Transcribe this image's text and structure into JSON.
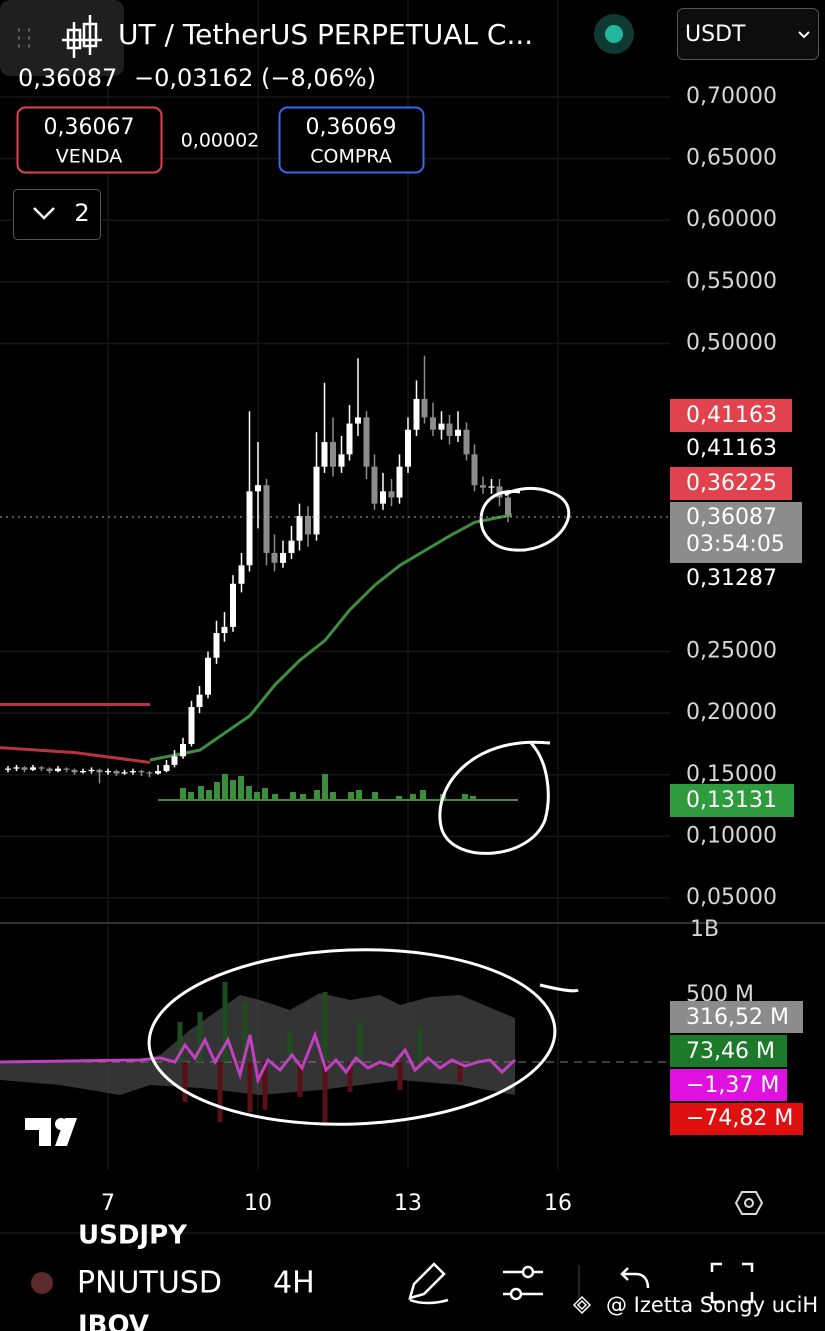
{
  "header": {
    "title": "UT / TetherUS PERPETUAL C...",
    "last_price": "0,36087",
    "change": "−0,03162 (−8,06%)",
    "sell": {
      "price": "0,36067",
      "label": "VENDA"
    },
    "spread": "0,00002",
    "buy": {
      "price": "0,36069",
      "label": "COMPRA"
    },
    "collapse_count": "2",
    "currency": "USDT"
  },
  "chart_data": {
    "type": "candlestick",
    "up_color": "#ffffff",
    "down_color": "#8c8c8c",
    "x": [
      5.0,
      5.17,
      5.33,
      5.5,
      5.67,
      5.83,
      6.0,
      6.17,
      6.33,
      6.5,
      6.67,
      6.83,
      7.0,
      7.17,
      7.33,
      7.5,
      7.67,
      7.83,
      8.0,
      8.17,
      8.33,
      8.5,
      8.67,
      8.83,
      9.0,
      9.17,
      9.33,
      9.5,
      9.67,
      9.83,
      10.0,
      10.17,
      10.33,
      10.5,
      10.67,
      10.83,
      11.0,
      11.17,
      11.33,
      11.5,
      11.67,
      11.83,
      12.0,
      12.17,
      12.33,
      12.5,
      12.67,
      12.83,
      13.0,
      13.17,
      13.33,
      13.5,
      13.67,
      13.83,
      14.0,
      14.17,
      14.33,
      14.5,
      14.67,
      14.83,
      15.0
    ],
    "ohlc": [
      [
        0.154,
        0.157,
        0.152,
        0.155
      ],
      [
        0.155,
        0.158,
        0.153,
        0.156
      ],
      [
        0.156,
        0.157,
        0.152,
        0.154
      ],
      [
        0.154,
        0.158,
        0.153,
        0.156
      ],
      [
        0.156,
        0.157,
        0.153,
        0.155
      ],
      [
        0.155,
        0.156,
        0.151,
        0.153
      ],
      [
        0.153,
        0.157,
        0.152,
        0.155
      ],
      [
        0.155,
        0.156,
        0.152,
        0.154
      ],
      [
        0.154,
        0.155,
        0.15,
        0.152
      ],
      [
        0.152,
        0.155,
        0.151,
        0.153
      ],
      [
        0.153,
        0.156,
        0.151,
        0.154
      ],
      [
        0.154,
        0.155,
        0.143,
        0.152
      ],
      [
        0.152,
        0.155,
        0.15,
        0.153
      ],
      [
        0.153,
        0.154,
        0.149,
        0.151
      ],
      [
        0.151,
        0.154,
        0.15,
        0.152
      ],
      [
        0.152,
        0.155,
        0.15,
        0.153
      ],
      [
        0.153,
        0.154,
        0.149,
        0.152
      ],
      [
        0.152,
        0.153,
        0.148,
        0.151
      ],
      [
        0.151,
        0.158,
        0.15,
        0.153
      ],
      [
        0.153,
        0.162,
        0.152,
        0.158
      ],
      [
        0.158,
        0.17,
        0.156,
        0.165
      ],
      [
        0.165,
        0.18,
        0.163,
        0.175
      ],
      [
        0.175,
        0.21,
        0.173,
        0.205
      ],
      [
        0.205,
        0.222,
        0.2,
        0.215
      ],
      [
        0.215,
        0.25,
        0.212,
        0.245
      ],
      [
        0.245,
        0.275,
        0.24,
        0.265
      ],
      [
        0.265,
        0.282,
        0.258,
        0.27
      ],
      [
        0.27,
        0.312,
        0.266,
        0.305
      ],
      [
        0.305,
        0.33,
        0.298,
        0.32
      ],
      [
        0.32,
        0.445,
        0.315,
        0.38
      ],
      [
        0.38,
        0.42,
        0.35,
        0.385
      ],
      [
        0.385,
        0.39,
        0.32,
        0.33
      ],
      [
        0.33,
        0.345,
        0.315,
        0.322
      ],
      [
        0.322,
        0.34,
        0.318,
        0.33
      ],
      [
        0.33,
        0.352,
        0.325,
        0.34
      ],
      [
        0.34,
        0.37,
        0.332,
        0.36
      ],
      [
        0.36,
        0.368,
        0.335,
        0.345
      ],
      [
        0.345,
        0.428,
        0.34,
        0.4
      ],
      [
        0.4,
        0.468,
        0.395,
        0.42
      ],
      [
        0.42,
        0.44,
        0.392,
        0.4
      ],
      [
        0.4,
        0.425,
        0.395,
        0.41
      ],
      [
        0.41,
        0.45,
        0.405,
        0.435
      ],
      [
        0.435,
        0.488,
        0.425,
        0.44
      ],
      [
        0.44,
        0.445,
        0.39,
        0.4
      ],
      [
        0.4,
        0.41,
        0.365,
        0.37
      ],
      [
        0.37,
        0.395,
        0.365,
        0.38
      ],
      [
        0.38,
        0.39,
        0.368,
        0.375
      ],
      [
        0.375,
        0.41,
        0.37,
        0.4
      ],
      [
        0.4,
        0.44,
        0.395,
        0.43
      ],
      [
        0.43,
        0.47,
        0.425,
        0.455
      ],
      [
        0.455,
        0.49,
        0.435,
        0.44
      ],
      [
        0.44,
        0.452,
        0.425,
        0.43
      ],
      [
        0.43,
        0.445,
        0.422,
        0.435
      ],
      [
        0.435,
        0.442,
        0.418,
        0.425
      ],
      [
        0.425,
        0.445,
        0.42,
        0.43
      ],
      [
        0.43,
        0.436,
        0.405,
        0.41
      ],
      [
        0.41,
        0.418,
        0.38,
        0.385
      ],
      [
        0.385,
        0.392,
        0.378,
        0.383
      ],
      [
        0.383,
        0.39,
        0.378,
        0.384
      ],
      [
        0.384,
        0.39,
        0.368,
        0.375
      ],
      [
        0.375,
        0.38,
        0.355,
        0.36087
      ]
    ],
    "lines": [
      {
        "color": "#3e8e3e",
        "x": [
          7.84,
          8.84,
          9.84,
          10.34,
          10.84,
          11.34,
          11.84,
          12.34,
          12.84,
          13.34,
          13.84,
          14.34,
          14.84,
          15.08
        ],
        "values": [
          0.162,
          0.17,
          0.198,
          0.223,
          0.243,
          0.259,
          0.284,
          0.304,
          0.32,
          0.332,
          0.344,
          0.355,
          0.359,
          0.361
        ]
      },
      {
        "color": "#b8343c",
        "x": [
          4.84,
          6.34,
          7.84
        ],
        "values": [
          0.172,
          0.168,
          0.16
        ]
      },
      {
        "color": "#b8343c",
        "x": [
          4.84,
          7.84
        ],
        "values": [
          0.207,
          0.207
        ]
      }
    ],
    "xlim": [
      4.84,
      18.24
    ],
    "ylim": [
      0.05,
      0.7
    ],
    "xticks": [
      7,
      10,
      13,
      16
    ],
    "yticks": [
      {
        "value": 0.7,
        "label": "0,70000"
      },
      {
        "value": 0.65,
        "label": "0,65000"
      },
      {
        "value": 0.6,
        "label": "0,60000"
      },
      {
        "value": 0.55,
        "label": "0,55000"
      },
      {
        "value": 0.5,
        "label": "0,50000"
      },
      {
        "value": 0.25,
        "label": "0,25000"
      },
      {
        "value": 0.2,
        "label": "0,20000"
      },
      {
        "value": 0.15,
        "label": "0,15000"
      },
      {
        "value": 0.1,
        "label": "0,10000"
      },
      {
        "value": 0.05,
        "label": "0,05000"
      }
    ],
    "grid": true
  },
  "price_tags": {
    "high": "0,41163",
    "high_line": "0,41163",
    "level": "0,36225",
    "last": "0,36087",
    "countdown": "03:54:05",
    "low_line": "0,31287",
    "volume": "0,13131"
  },
  "indicator": {
    "scale_top": "1B",
    "scale_mid": "500 M",
    "tags": [
      "316,52 M",
      "73,46 M",
      "−1,37 M",
      "−74,82 M"
    ]
  },
  "bottom_bar": {
    "above": "USDJPY",
    "symbol": "PNUTUSD",
    "interval": "4H",
    "below": "IBOV",
    "watermark": "@ Izetta Songy uciH"
  }
}
